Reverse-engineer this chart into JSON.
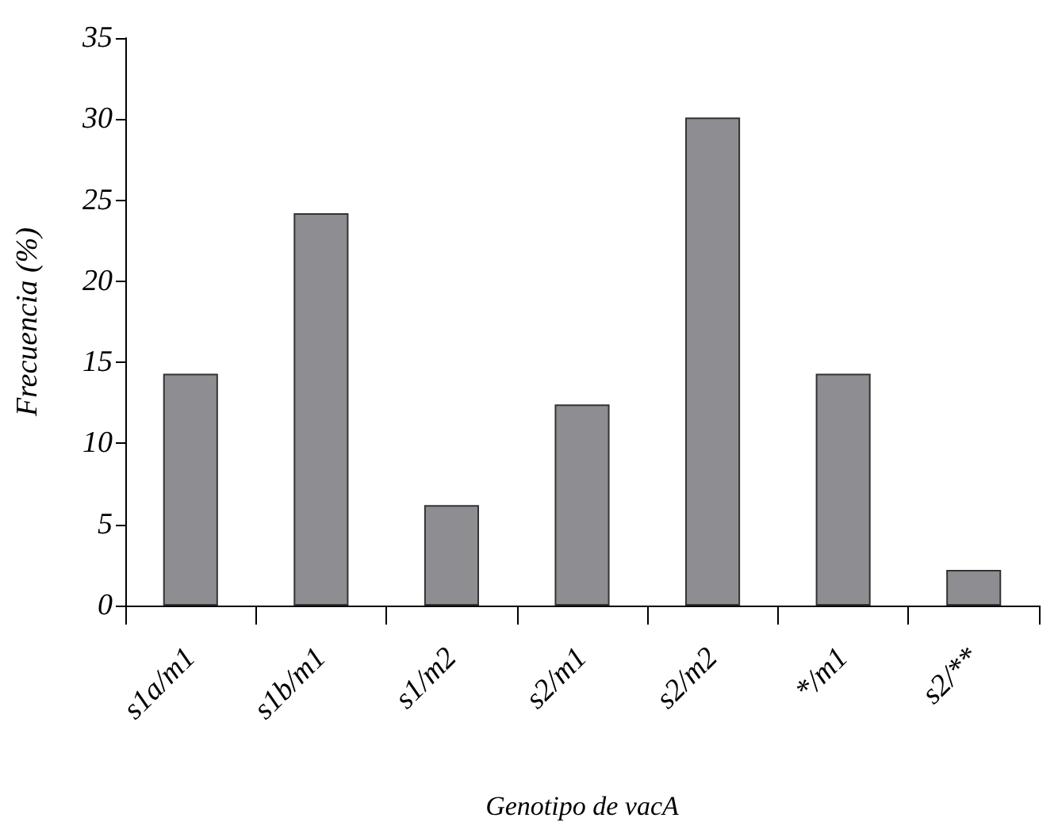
{
  "chart_data": {
    "type": "bar",
    "xlabel": "Genotipo de vacA",
    "ylabel": "Frecuencia (%)",
    "categories": [
      "s1a/m1",
      "s1b/m1",
      "s1/m2",
      "s2/m1",
      "s2/m2",
      "*/m1",
      "s2/**"
    ],
    "values": [
      14.3,
      24.2,
      6.2,
      12.4,
      30.1,
      14.3,
      2.2
    ],
    "color": "#8e8e92",
    "ylim": [
      0,
      35
    ],
    "yticks": [
      0,
      5,
      10,
      15,
      20,
      25,
      30,
      35
    ],
    "grid": false
  }
}
